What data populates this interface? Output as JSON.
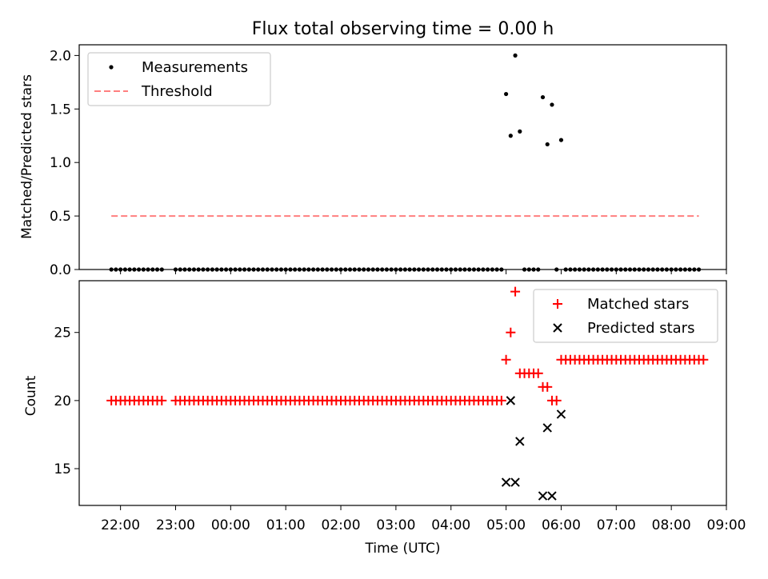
{
  "chart_data": [
    {
      "type": "scatter",
      "title": "Flux total observing time = 0.00 h",
      "ylabel": "Matched/Predicted stars",
      "xlabel": "",
      "xlim": [
        "21:15",
        "09:00"
      ],
      "ylim": [
        0,
        2.1
      ],
      "yticks": [
        "0.0",
        "0.5",
        "1.0",
        "1.5",
        "2.0"
      ],
      "grid": false,
      "legend_position": "top-left",
      "legend": [
        "Measurements",
        "Threshold"
      ],
      "series": [
        {
          "name": "Measurements",
          "marker": "dot",
          "color": "#000000",
          "points": [
            [
              "21:50",
              0
            ],
            [
              "21:55",
              0
            ],
            [
              "22:00",
              0
            ],
            [
              "22:05",
              0
            ],
            [
              "22:10",
              0
            ],
            [
              "22:15",
              0
            ],
            [
              "22:20",
              0
            ],
            [
              "22:25",
              0
            ],
            [
              "22:30",
              0
            ],
            [
              "22:35",
              0
            ],
            [
              "22:40",
              0
            ],
            [
              "22:45",
              0
            ],
            [
              "23:00",
              0
            ],
            [
              "23:05",
              0
            ],
            [
              "23:10",
              0
            ],
            [
              "23:15",
              0
            ],
            [
              "23:20",
              0
            ],
            [
              "23:25",
              0
            ],
            [
              "23:30",
              0
            ],
            [
              "23:35",
              0
            ],
            [
              "23:40",
              0
            ],
            [
              "23:45",
              0
            ],
            [
              "23:50",
              0
            ],
            [
              "23:55",
              0
            ],
            [
              "00:00",
              0
            ],
            [
              "00:05",
              0
            ],
            [
              "00:10",
              0
            ],
            [
              "00:15",
              0
            ],
            [
              "00:20",
              0
            ],
            [
              "00:25",
              0
            ],
            [
              "00:30",
              0
            ],
            [
              "00:35",
              0
            ],
            [
              "00:40",
              0
            ],
            [
              "00:45",
              0
            ],
            [
              "00:50",
              0
            ],
            [
              "00:55",
              0
            ],
            [
              "01:00",
              0
            ],
            [
              "01:05",
              0
            ],
            [
              "01:10",
              0
            ],
            [
              "01:15",
              0
            ],
            [
              "01:20",
              0
            ],
            [
              "01:25",
              0
            ],
            [
              "01:30",
              0
            ],
            [
              "01:35",
              0
            ],
            [
              "01:40",
              0
            ],
            [
              "01:45",
              0
            ],
            [
              "01:50",
              0
            ],
            [
              "01:55",
              0
            ],
            [
              "02:00",
              0
            ],
            [
              "02:05",
              0
            ],
            [
              "02:10",
              0
            ],
            [
              "02:15",
              0
            ],
            [
              "02:20",
              0
            ],
            [
              "02:25",
              0
            ],
            [
              "02:30",
              0
            ],
            [
              "02:35",
              0
            ],
            [
              "02:40",
              0
            ],
            [
              "02:45",
              0
            ],
            [
              "02:50",
              0
            ],
            [
              "02:55",
              0
            ],
            [
              "03:00",
              0
            ],
            [
              "03:05",
              0
            ],
            [
              "03:10",
              0
            ],
            [
              "03:15",
              0
            ],
            [
              "03:20",
              0
            ],
            [
              "03:25",
              0
            ],
            [
              "03:30",
              0
            ],
            [
              "03:35",
              0
            ],
            [
              "03:40",
              0
            ],
            [
              "03:45",
              0
            ],
            [
              "03:50",
              0
            ],
            [
              "03:55",
              0
            ],
            [
              "04:00",
              0
            ],
            [
              "04:05",
              0
            ],
            [
              "04:10",
              0
            ],
            [
              "04:15",
              0
            ],
            [
              "04:20",
              0
            ],
            [
              "04:25",
              0
            ],
            [
              "04:30",
              0
            ],
            [
              "04:35",
              0
            ],
            [
              "04:40",
              0
            ],
            [
              "04:45",
              0
            ],
            [
              "04:50",
              0
            ],
            [
              "04:55",
              0
            ],
            [
              "05:00",
              1.64
            ],
            [
              "05:05",
              1.25
            ],
            [
              "05:10",
              2.0
            ],
            [
              "05:15",
              1.29
            ],
            [
              "05:20",
              0
            ],
            [
              "05:25",
              0
            ],
            [
              "05:30",
              0
            ],
            [
              "05:35",
              0
            ],
            [
              "05:40",
              1.61
            ],
            [
              "05:45",
              1.17
            ],
            [
              "05:50",
              1.54
            ],
            [
              "05:55",
              0
            ],
            [
              "06:00",
              1.21
            ],
            [
              "06:05",
              0
            ],
            [
              "06:10",
              0
            ],
            [
              "06:15",
              0
            ],
            [
              "06:20",
              0
            ],
            [
              "06:25",
              0
            ],
            [
              "06:30",
              0
            ],
            [
              "06:35",
              0
            ],
            [
              "06:40",
              0
            ],
            [
              "06:45",
              0
            ],
            [
              "06:50",
              0
            ],
            [
              "06:55",
              0
            ],
            [
              "07:00",
              0
            ],
            [
              "07:05",
              0
            ],
            [
              "07:10",
              0
            ],
            [
              "07:15",
              0
            ],
            [
              "07:20",
              0
            ],
            [
              "07:25",
              0
            ],
            [
              "07:30",
              0
            ],
            [
              "07:35",
              0
            ],
            [
              "07:40",
              0
            ],
            [
              "07:45",
              0
            ],
            [
              "07:50",
              0
            ],
            [
              "07:55",
              0
            ],
            [
              "08:00",
              0
            ],
            [
              "08:05",
              0
            ],
            [
              "08:10",
              0
            ],
            [
              "08:15",
              0
            ],
            [
              "08:20",
              0
            ],
            [
              "08:25",
              0
            ],
            [
              "08:30",
              0
            ]
          ]
        },
        {
          "name": "Threshold",
          "style": "dashed-line",
          "color": "#ff7f7f",
          "points": [
            [
              "21:50",
              0.5
            ],
            [
              "08:30",
              0.5
            ]
          ]
        }
      ]
    },
    {
      "type": "scatter",
      "title": "",
      "ylabel": "Count",
      "xlabel": "Time (UTC)",
      "xlim": [
        "21:15",
        "09:00"
      ],
      "ylim": [
        12.3,
        28.8
      ],
      "yticks": [
        "15",
        "20",
        "25"
      ],
      "xticks": [
        "22:00",
        "23:00",
        "00:00",
        "01:00",
        "02:00",
        "03:00",
        "04:00",
        "05:00",
        "06:00",
        "07:00",
        "08:00",
        "09:00"
      ],
      "grid": false,
      "legend_position": "top-right",
      "legend": [
        "Matched stars",
        "Predicted stars"
      ],
      "series": [
        {
          "name": "Matched stars",
          "marker": "plus",
          "color": "#ff0000",
          "points": [
            [
              "21:50",
              20
            ],
            [
              "21:55",
              20
            ],
            [
              "22:00",
              20
            ],
            [
              "22:05",
              20
            ],
            [
              "22:10",
              20
            ],
            [
              "22:15",
              20
            ],
            [
              "22:20",
              20
            ],
            [
              "22:25",
              20
            ],
            [
              "22:30",
              20
            ],
            [
              "22:35",
              20
            ],
            [
              "22:40",
              20
            ],
            [
              "22:45",
              20
            ],
            [
              "23:00",
              20
            ],
            [
              "23:05",
              20
            ],
            [
              "23:10",
              20
            ],
            [
              "23:15",
              20
            ],
            [
              "23:20",
              20
            ],
            [
              "23:25",
              20
            ],
            [
              "23:30",
              20
            ],
            [
              "23:35",
              20
            ],
            [
              "23:40",
              20
            ],
            [
              "23:45",
              20
            ],
            [
              "23:50",
              20
            ],
            [
              "23:55",
              20
            ],
            [
              "00:00",
              20
            ],
            [
              "00:05",
              20
            ],
            [
              "00:10",
              20
            ],
            [
              "00:15",
              20
            ],
            [
              "00:20",
              20
            ],
            [
              "00:25",
              20
            ],
            [
              "00:30",
              20
            ],
            [
              "00:35",
              20
            ],
            [
              "00:40",
              20
            ],
            [
              "00:45",
              20
            ],
            [
              "00:50",
              20
            ],
            [
              "00:55",
              20
            ],
            [
              "01:00",
              20
            ],
            [
              "01:05",
              20
            ],
            [
              "01:10",
              20
            ],
            [
              "01:15",
              20
            ],
            [
              "01:20",
              20
            ],
            [
              "01:25",
              20
            ],
            [
              "01:30",
              20
            ],
            [
              "01:35",
              20
            ],
            [
              "01:40",
              20
            ],
            [
              "01:45",
              20
            ],
            [
              "01:50",
              20
            ],
            [
              "01:55",
              20
            ],
            [
              "02:00",
              20
            ],
            [
              "02:05",
              20
            ],
            [
              "02:10",
              20
            ],
            [
              "02:15",
              20
            ],
            [
              "02:20",
              20
            ],
            [
              "02:25",
              20
            ],
            [
              "02:30",
              20
            ],
            [
              "02:35",
              20
            ],
            [
              "02:40",
              20
            ],
            [
              "02:45",
              20
            ],
            [
              "02:50",
              20
            ],
            [
              "02:55",
              20
            ],
            [
              "03:00",
              20
            ],
            [
              "03:05",
              20
            ],
            [
              "03:10",
              20
            ],
            [
              "03:15",
              20
            ],
            [
              "03:20",
              20
            ],
            [
              "03:25",
              20
            ],
            [
              "03:30",
              20
            ],
            [
              "03:35",
              20
            ],
            [
              "03:40",
              20
            ],
            [
              "03:45",
              20
            ],
            [
              "03:50",
              20
            ],
            [
              "03:55",
              20
            ],
            [
              "04:00",
              20
            ],
            [
              "04:05",
              20
            ],
            [
              "04:10",
              20
            ],
            [
              "04:15",
              20
            ],
            [
              "04:20",
              20
            ],
            [
              "04:25",
              20
            ],
            [
              "04:30",
              20
            ],
            [
              "04:35",
              20
            ],
            [
              "04:40",
              20
            ],
            [
              "04:45",
              20
            ],
            [
              "04:50",
              20
            ],
            [
              "04:55",
              20
            ],
            [
              "05:00",
              23
            ],
            [
              "05:05",
              25
            ],
            [
              "05:10",
              28
            ],
            [
              "05:15",
              22
            ],
            [
              "05:20",
              22
            ],
            [
              "05:25",
              22
            ],
            [
              "05:30",
              22
            ],
            [
              "05:35",
              22
            ],
            [
              "05:40",
              21
            ],
            [
              "05:45",
              21
            ],
            [
              "05:50",
              20
            ],
            [
              "05:55",
              20
            ],
            [
              "06:00",
              23
            ],
            [
              "06:05",
              23
            ],
            [
              "06:10",
              23
            ],
            [
              "06:15",
              23
            ],
            [
              "06:20",
              23
            ],
            [
              "06:25",
              23
            ],
            [
              "06:30",
              23
            ],
            [
              "06:35",
              23
            ],
            [
              "06:40",
              23
            ],
            [
              "06:45",
              23
            ],
            [
              "06:50",
              23
            ],
            [
              "06:55",
              23
            ],
            [
              "07:00",
              23
            ],
            [
              "07:05",
              23
            ],
            [
              "07:10",
              23
            ],
            [
              "07:15",
              23
            ],
            [
              "07:20",
              23
            ],
            [
              "07:25",
              23
            ],
            [
              "07:30",
              23
            ],
            [
              "07:35",
              23
            ],
            [
              "07:40",
              23
            ],
            [
              "07:45",
              23
            ],
            [
              "07:50",
              23
            ],
            [
              "07:55",
              23
            ],
            [
              "08:00",
              23
            ],
            [
              "08:05",
              23
            ],
            [
              "08:10",
              23
            ],
            [
              "08:15",
              23
            ],
            [
              "08:20",
              23
            ],
            [
              "08:25",
              23
            ],
            [
              "08:30",
              23
            ],
            [
              "08:35",
              23
            ]
          ]
        },
        {
          "name": "Predicted stars",
          "marker": "x",
          "color": "#000000",
          "points": [
            [
              "05:00",
              14
            ],
            [
              "05:05",
              20
            ],
            [
              "05:10",
              14
            ],
            [
              "05:15",
              17
            ],
            [
              "05:40",
              13
            ],
            [
              "05:45",
              18
            ],
            [
              "05:50",
              13
            ],
            [
              "06:00",
              19
            ]
          ]
        }
      ]
    }
  ]
}
